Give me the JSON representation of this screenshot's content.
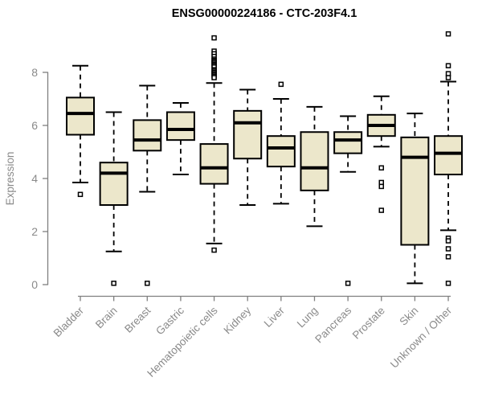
{
  "chart_data": {
    "type": "boxplot",
    "title": "ENSG00000224186 - CTC-203F4.1",
    "xlabel": "",
    "ylabel": "Expression",
    "ylim": [
      0,
      9.8
    ],
    "yticks": [
      0,
      2,
      4,
      6,
      8
    ],
    "grid": false,
    "legend": "none",
    "categories": [
      "Bladder",
      "Brain",
      "Breast",
      "Gastric",
      "Hematopoietic cells",
      "Kidney",
      "Liver",
      "Lung",
      "Pancreas",
      "Prostate",
      "Skin",
      "Unknown / Other"
    ],
    "boxes": [
      {
        "label": "Bladder",
        "whisker_low": 3.85,
        "q1": 5.65,
        "median": 6.45,
        "q3": 7.05,
        "whisker_high": 8.25,
        "outliers": [
          3.4
        ]
      },
      {
        "label": "Brain",
        "whisker_low": 1.25,
        "q1": 3.0,
        "median": 4.2,
        "q3": 4.6,
        "whisker_high": 6.5,
        "outliers": [
          0.05
        ]
      },
      {
        "label": "Breast",
        "whisker_low": 3.5,
        "q1": 5.05,
        "median": 5.45,
        "q3": 6.2,
        "whisker_high": 7.5,
        "outliers": [
          0.05
        ]
      },
      {
        "label": "Gastric",
        "whisker_low": 4.15,
        "q1": 5.45,
        "median": 5.85,
        "q3": 6.5,
        "whisker_high": 6.85,
        "outliers": []
      },
      {
        "label": "Hematopoietic cells",
        "whisker_low": 1.55,
        "q1": 3.8,
        "median": 4.4,
        "q3": 5.3,
        "whisker_high": 7.6,
        "outliers": [
          9.3,
          8.8,
          8.7,
          8.6,
          8.5,
          8.45,
          8.4,
          8.35,
          8.3,
          8.25,
          8.2,
          8.1,
          8.05,
          8.0,
          7.95,
          7.9,
          7.85,
          7.8,
          1.3
        ]
      },
      {
        "label": "Kidney",
        "whisker_low": 3.0,
        "q1": 4.75,
        "median": 6.1,
        "q3": 6.55,
        "whisker_high": 7.35,
        "outliers": []
      },
      {
        "label": "Liver",
        "whisker_low": 3.05,
        "q1": 4.45,
        "median": 5.15,
        "q3": 5.6,
        "whisker_high": 7.0,
        "outliers": [
          7.55
        ]
      },
      {
        "label": "Lung",
        "whisker_low": 2.2,
        "q1": 3.55,
        "median": 4.4,
        "q3": 5.75,
        "whisker_high": 6.7,
        "outliers": []
      },
      {
        "label": "Pancreas",
        "whisker_low": 4.25,
        "q1": 4.95,
        "median": 5.45,
        "q3": 5.75,
        "whisker_high": 6.35,
        "outliers": [
          0.05
        ]
      },
      {
        "label": "Prostate",
        "whisker_low": 5.2,
        "q1": 5.6,
        "median": 6.0,
        "q3": 6.4,
        "whisker_high": 7.1,
        "outliers": [
          4.4,
          3.85,
          3.7,
          2.8
        ]
      },
      {
        "label": "Skin",
        "whisker_low": 0.05,
        "q1": 1.5,
        "median": 4.8,
        "q3": 5.55,
        "whisker_high": 6.45,
        "outliers": []
      },
      {
        "label": "Unknown / Other",
        "whisker_low": 2.05,
        "q1": 4.15,
        "median": 4.95,
        "q3": 5.6,
        "whisker_high": 7.65,
        "outliers": [
          9.45,
          8.25,
          7.95,
          7.8,
          1.75,
          1.65,
          1.35,
          1.05,
          0.05
        ]
      }
    ]
  },
  "colors": {
    "background": "#ffffff",
    "box_fill": "#ece7cb",
    "box_stroke": "#000000",
    "median": "#000000",
    "whisker": "#000000",
    "outlier_stroke": "#000000",
    "outlier_fill": "#ffffff",
    "axis": "#7f7f7f",
    "tick_text": "#8a8a8a",
    "title": "#000000"
  }
}
